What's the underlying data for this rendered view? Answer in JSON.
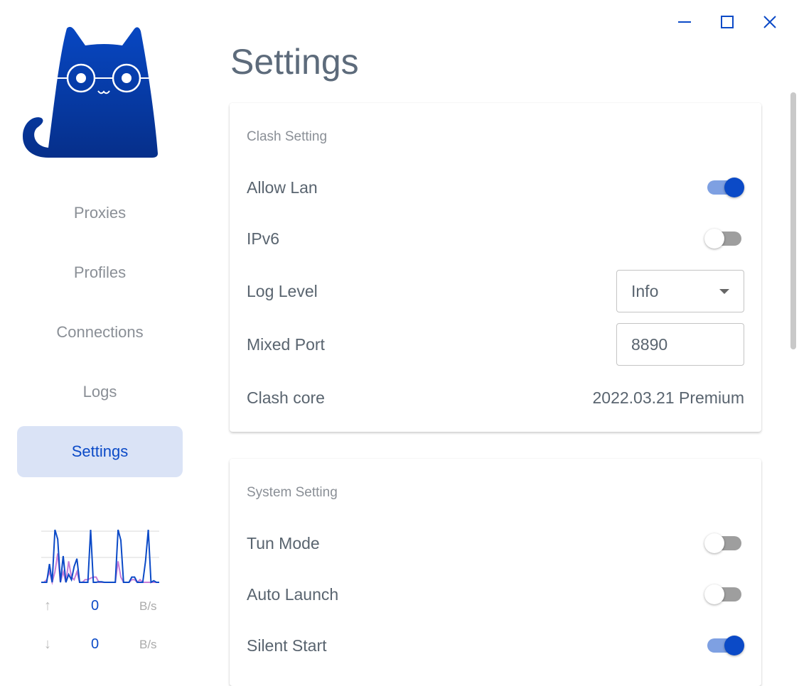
{
  "window": {
    "controls": [
      "minimize-icon",
      "maximize-icon",
      "close-icon"
    ],
    "accent": "#0b4ac7"
  },
  "sidebar": {
    "items": [
      {
        "label": "Proxies"
      },
      {
        "label": "Profiles"
      },
      {
        "label": "Connections"
      },
      {
        "label": "Logs"
      },
      {
        "label": "Settings",
        "active": true
      }
    ],
    "traffic": {
      "upload": {
        "value": "0",
        "unit": "B/s",
        "icon": "arrow-up-icon"
      },
      "download": {
        "value": "0",
        "unit": "B/s",
        "icon": "arrow-down-icon"
      },
      "chart_data": {
        "type": "line",
        "ylim": [
          0,
          100
        ],
        "grid": true,
        "series": [
          {
            "color": "#0b4ac7",
            "values": [
              0,
              0,
              0,
              35,
              0,
              100,
              82,
              0,
              50,
              0,
              15,
              5,
              30,
              45,
              0,
              0,
              0,
              0,
              100,
              0,
              0,
              1,
              1,
              0,
              0,
              0,
              0,
              0,
              100,
              80,
              0,
              0,
              0,
              10,
              10,
              0,
              0,
              0,
              40,
              100,
              0,
              3,
              0,
              0
            ]
          },
          {
            "color": "#c77ed8",
            "values": [
              0,
              0,
              5,
              20,
              0,
              20,
              55,
              0,
              20,
              0,
              40,
              10,
              5,
              20,
              0,
              0,
              5,
              5,
              8,
              10,
              10,
              0,
              0,
              0,
              0,
              0,
              0,
              0,
              40,
              10,
              0,
              0,
              0,
              5,
              5,
              0,
              5,
              0,
              0,
              0,
              0,
              0,
              0,
              0
            ]
          }
        ]
      }
    }
  },
  "page": {
    "title": "Settings"
  },
  "clash_setting": {
    "title": "Clash Setting",
    "allow_lan": {
      "label": "Allow Lan",
      "on": true
    },
    "ipv6": {
      "label": "IPv6",
      "on": false
    },
    "log_level": {
      "label": "Log Level",
      "value": "Info"
    },
    "mixed_port": {
      "label": "Mixed Port",
      "value": "8890"
    },
    "clash_core": {
      "label": "Clash core",
      "value": "2022.03.21 Premium"
    }
  },
  "system_setting": {
    "title": "System Setting",
    "tun_mode": {
      "label": "Tun Mode",
      "on": false
    },
    "auto_launch": {
      "label": "Auto Launch",
      "on": false
    },
    "silent_start": {
      "label": "Silent Start",
      "on": true
    }
  }
}
